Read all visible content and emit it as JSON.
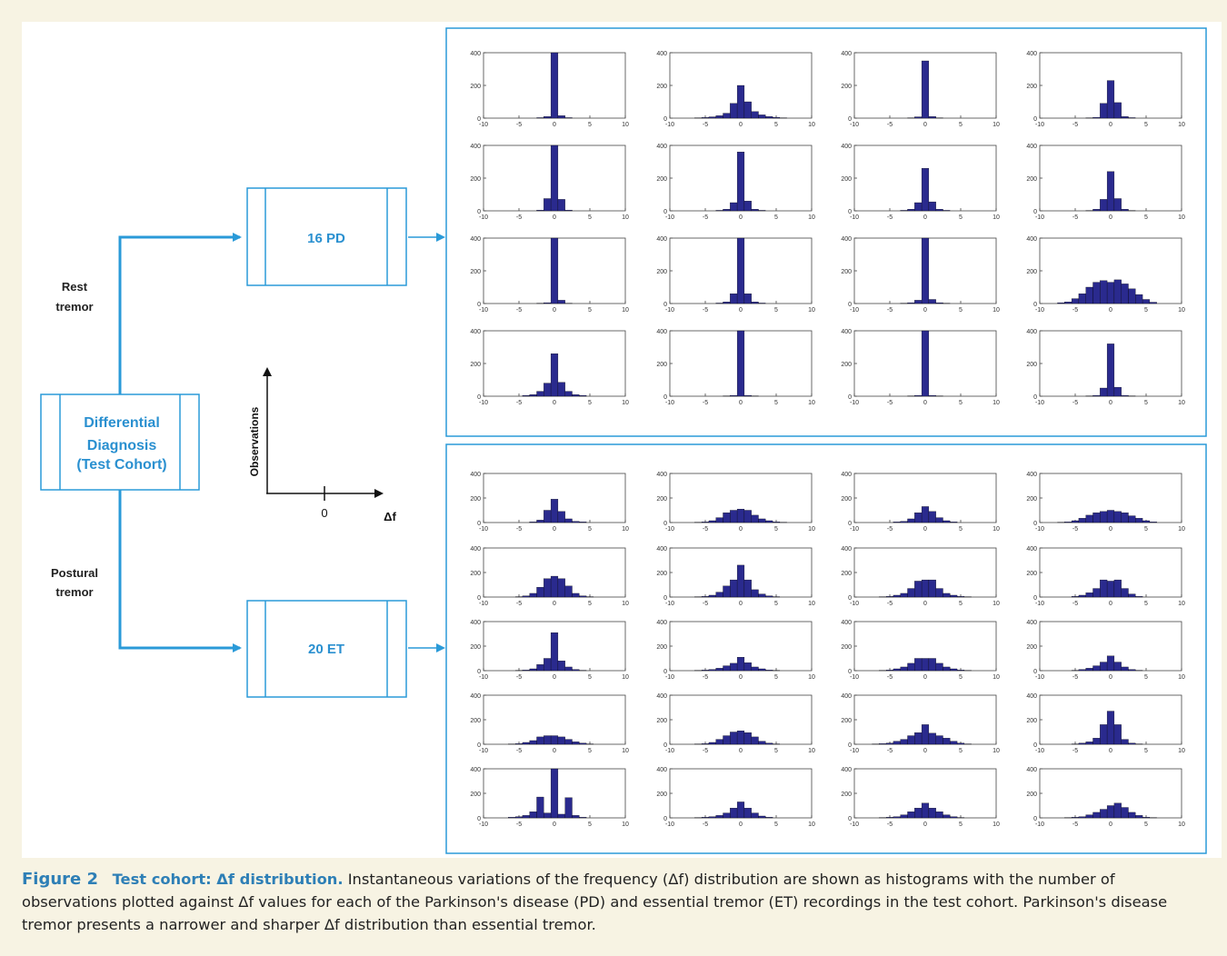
{
  "diagram": {
    "center_box_lines": [
      "Differential",
      "Diagnosis",
      "(Test Cohort)"
    ],
    "upper_branch_label_lines": [
      "Rest",
      "tremor"
    ],
    "lower_branch_label_lines": [
      "Postural",
      "tremor"
    ],
    "pd_box_label": "16 PD",
    "et_box_label": "20 ET",
    "axis_y_label": "Observations",
    "axis_x_label": "Δf",
    "axis_zero_label": "0",
    "color_flow": "#2a9ad8",
    "color_box_text": "#2a90d0"
  },
  "chart_data": {
    "type": "bar",
    "bar_color": "#2a2a8e",
    "x_ticks": [
      -10,
      -5,
      0,
      5,
      10
    ],
    "y_ticks": [
      0,
      200,
      400
    ],
    "xlim": [
      -10,
      10
    ],
    "ylim": [
      0,
      400
    ],
    "bin_centers": [
      -10,
      -9,
      -8,
      -7,
      -6,
      -5,
      -4,
      -3,
      -2,
      -1,
      0,
      1,
      2,
      3,
      4,
      5,
      6,
      7,
      8,
      9,
      10
    ],
    "pd_panel": {
      "title": "16 PD",
      "histograms": [
        [
          0,
          0,
          0,
          0,
          0,
          0,
          0,
          0,
          3,
          10,
          400,
          15,
          3,
          0,
          0,
          0,
          0,
          0,
          0,
          0,
          0
        ],
        [
          0,
          0,
          0,
          0,
          2,
          4,
          8,
          15,
          30,
          90,
          200,
          100,
          40,
          20,
          10,
          5,
          2,
          0,
          0,
          0,
          0
        ],
        [
          0,
          0,
          0,
          0,
          0,
          0,
          0,
          0,
          2,
          8,
          350,
          10,
          2,
          0,
          0,
          0,
          0,
          0,
          0,
          0,
          0
        ],
        [
          0,
          0,
          0,
          0,
          0,
          0,
          0,
          2,
          5,
          90,
          230,
          95,
          10,
          3,
          0,
          0,
          0,
          0,
          0,
          0,
          0
        ],
        [
          0,
          0,
          0,
          0,
          0,
          0,
          0,
          0,
          4,
          75,
          400,
          70,
          4,
          0,
          0,
          0,
          0,
          0,
          0,
          0,
          0
        ],
        [
          0,
          0,
          0,
          0,
          0,
          0,
          0,
          3,
          10,
          50,
          360,
          60,
          10,
          3,
          0,
          0,
          0,
          0,
          0,
          0,
          0
        ],
        [
          0,
          0,
          0,
          0,
          0,
          0,
          0,
          3,
          10,
          50,
          260,
          55,
          10,
          3,
          0,
          0,
          0,
          0,
          0,
          0,
          0
        ],
        [
          0,
          0,
          0,
          0,
          0,
          0,
          0,
          2,
          10,
          70,
          240,
          75,
          10,
          2,
          0,
          0,
          0,
          0,
          0,
          0,
          0
        ],
        [
          0,
          0,
          0,
          0,
          0,
          0,
          0,
          0,
          2,
          5,
          400,
          20,
          2,
          0,
          0,
          0,
          0,
          0,
          0,
          0,
          0
        ],
        [
          0,
          0,
          0,
          0,
          0,
          0,
          0,
          3,
          10,
          60,
          400,
          60,
          10,
          3,
          0,
          0,
          0,
          0,
          0,
          0,
          0
        ],
        [
          0,
          0,
          0,
          0,
          0,
          0,
          0,
          2,
          5,
          20,
          400,
          25,
          5,
          2,
          0,
          0,
          0,
          0,
          0,
          0,
          0
        ],
        [
          0,
          0,
          0,
          5,
          10,
          30,
          60,
          100,
          130,
          140,
          130,
          145,
          120,
          90,
          55,
          25,
          8,
          0,
          0,
          0,
          0
        ],
        [
          0,
          0,
          0,
          0,
          0,
          0,
          5,
          10,
          30,
          80,
          260,
          85,
          30,
          10,
          5,
          0,
          0,
          0,
          0,
          0,
          0
        ],
        [
          0,
          0,
          0,
          0,
          0,
          0,
          0,
          0,
          2,
          5,
          400,
          5,
          2,
          0,
          0,
          0,
          0,
          0,
          0,
          0,
          0
        ],
        [
          0,
          0,
          0,
          0,
          0,
          0,
          0,
          0,
          2,
          5,
          400,
          5,
          2,
          0,
          0,
          0,
          0,
          0,
          0,
          0,
          0
        ],
        [
          0,
          0,
          0,
          0,
          0,
          0,
          0,
          2,
          5,
          50,
          320,
          55,
          5,
          2,
          0,
          0,
          0,
          0,
          0,
          0,
          0
        ]
      ]
    },
    "et_panel": {
      "title": "20 ET",
      "histograms": [
        [
          0,
          0,
          0,
          0,
          0,
          0,
          0,
          5,
          20,
          100,
          190,
          90,
          30,
          10,
          5,
          0,
          0,
          0,
          0,
          0,
          0
        ],
        [
          0,
          0,
          0,
          0,
          2,
          5,
          15,
          40,
          80,
          100,
          110,
          100,
          60,
          30,
          15,
          5,
          2,
          0,
          0,
          0,
          0
        ],
        [
          0,
          0,
          0,
          0,
          0,
          0,
          5,
          10,
          30,
          80,
          130,
          90,
          40,
          15,
          5,
          0,
          0,
          0,
          0,
          0,
          0
        ],
        [
          0,
          0,
          0,
          2,
          5,
          15,
          35,
          60,
          80,
          90,
          100,
          90,
          80,
          55,
          35,
          15,
          5,
          0,
          0,
          0,
          0
        ],
        [
          0,
          0,
          0,
          0,
          0,
          3,
          10,
          30,
          80,
          150,
          170,
          150,
          90,
          30,
          10,
          3,
          0,
          0,
          0,
          0,
          0
        ],
        [
          0,
          0,
          0,
          0,
          2,
          5,
          15,
          40,
          90,
          140,
          260,
          140,
          60,
          25,
          10,
          3,
          0,
          0,
          0,
          0,
          0
        ],
        [
          0,
          0,
          0,
          0,
          2,
          5,
          15,
          30,
          70,
          130,
          140,
          140,
          70,
          30,
          15,
          5,
          2,
          0,
          0,
          0,
          0
        ],
        [
          0,
          0,
          0,
          0,
          0,
          5,
          15,
          35,
          70,
          140,
          130,
          140,
          70,
          25,
          5,
          0,
          0,
          0,
          0,
          0,
          0
        ],
        [
          0,
          0,
          0,
          0,
          0,
          2,
          5,
          15,
          50,
          100,
          310,
          80,
          30,
          10,
          3,
          0,
          0,
          0,
          0,
          0,
          0
        ],
        [
          0,
          0,
          0,
          0,
          2,
          5,
          10,
          20,
          40,
          60,
          110,
          65,
          30,
          15,
          5,
          2,
          0,
          0,
          0,
          0,
          0
        ],
        [
          0,
          0,
          0,
          0,
          2,
          5,
          15,
          30,
          60,
          100,
          100,
          100,
          60,
          30,
          15,
          5,
          2,
          0,
          0,
          0,
          0
        ],
        [
          0,
          0,
          0,
          0,
          0,
          3,
          10,
          20,
          40,
          70,
          120,
          70,
          30,
          10,
          3,
          0,
          0,
          0,
          0,
          0,
          0
        ],
        [
          0,
          0,
          0,
          0,
          2,
          5,
          15,
          30,
          60,
          70,
          70,
          60,
          40,
          20,
          10,
          3,
          0,
          0,
          0,
          0,
          0
        ],
        [
          0,
          0,
          0,
          0,
          2,
          5,
          15,
          40,
          70,
          100,
          110,
          95,
          60,
          25,
          10,
          3,
          0,
          0,
          0,
          0,
          0
        ],
        [
          0,
          0,
          0,
          2,
          5,
          10,
          25,
          40,
          70,
          95,
          160,
          90,
          70,
          50,
          25,
          10,
          3,
          0,
          0,
          0,
          0
        ],
        [
          0,
          0,
          0,
          0,
          0,
          3,
          10,
          20,
          50,
          160,
          270,
          160,
          40,
          10,
          3,
          0,
          0,
          0,
          0,
          0,
          0
        ],
        [
          0,
          0,
          0,
          0,
          5,
          10,
          20,
          50,
          170,
          40,
          400,
          30,
          165,
          20,
          5,
          0,
          0,
          0,
          0,
          0,
          0
        ],
        [
          0,
          0,
          0,
          0,
          2,
          5,
          10,
          20,
          40,
          80,
          130,
          80,
          40,
          15,
          5,
          0,
          0,
          0,
          0,
          0,
          0
        ],
        [
          0,
          0,
          0,
          0,
          2,
          5,
          10,
          25,
          50,
          80,
          120,
          80,
          50,
          25,
          10,
          3,
          0,
          0,
          0,
          0,
          0
        ],
        [
          0,
          0,
          0,
          0,
          2,
          5,
          10,
          25,
          45,
          70,
          100,
          120,
          85,
          45,
          20,
          5,
          2,
          0,
          0,
          0,
          0
        ]
      ]
    }
  },
  "caption": {
    "label": "Figure 2",
    "title": "Test cohort: Δf distribution.",
    "body": "Instantaneous variations of the frequency (Δf) distribution are shown as histograms with the number of observations plotted against Δf values for each of the Parkinson's disease (PD) and essential tremor (ET) recordings in the test cohort. Parkinson's disease tremor presents a narrower and sharper Δf distribution than essential tremor."
  }
}
